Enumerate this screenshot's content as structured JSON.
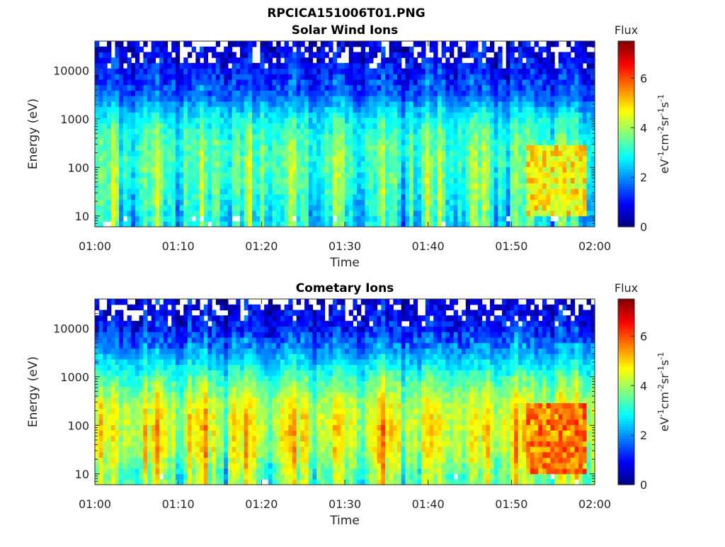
{
  "figure": {
    "title": "RPCICA151006T01.PNG"
  },
  "colormap": "jet",
  "chart_data": [
    {
      "type": "heatmap",
      "title": "Solar Wind Ions",
      "xlabel": "Time",
      "ylabel": "Energy (eV)",
      "x_tick_labels": [
        "01:00",
        "01:10",
        "01:20",
        "01:30",
        "01:40",
        "01:50",
        "02:00"
      ],
      "x_range": [
        "01:00",
        "02:00"
      ],
      "y_scale": "log",
      "y_tick_labels": [
        "10",
        "100",
        "1000",
        "10000"
      ],
      "y_range": [
        6,
        40000
      ],
      "colorbar": {
        "title": "Flux",
        "label": "eV-1cm-2sr-1s-1",
        "tick_labels": [
          "0",
          "2",
          "4",
          "6"
        ],
        "range": [
          0,
          7.5
        ]
      },
      "flux_profile": {
        "energy_eV": [
          10,
          30,
          100,
          300,
          1000,
          3000,
          10000,
          30000
        ],
        "typical_flux": [
          3.0,
          3.3,
          3.5,
          3.4,
          2.9,
          1.7,
          1.1,
          0.7
        ]
      },
      "intense_interval": {
        "time": [
          "01:52",
          "01:59"
        ],
        "energy_eV": [
          10,
          300
        ],
        "peak_flux": 5.3
      }
    },
    {
      "type": "heatmap",
      "title": "Cometary Ions",
      "xlabel": "Time",
      "ylabel": "Energy (eV)",
      "x_tick_labels": [
        "01:00",
        "01:10",
        "01:20",
        "01:30",
        "01:40",
        "01:50",
        "02:00"
      ],
      "x_range": [
        "01:00",
        "02:00"
      ],
      "y_scale": "log",
      "y_tick_labels": [
        "10",
        "100",
        "1000",
        "10000"
      ],
      "y_range": [
        6,
        40000
      ],
      "colorbar": {
        "title": "Flux",
        "label": "eV-1cm-2sr-1s-1",
        "tick_labels": [
          "0",
          "2",
          "4",
          "6"
        ],
        "range": [
          0,
          7.5
        ]
      },
      "flux_profile": {
        "energy_eV": [
          10,
          30,
          100,
          300,
          1000,
          3000,
          10000,
          30000
        ],
        "typical_flux": [
          3.8,
          4.4,
          4.6,
          4.3,
          3.3,
          2.2,
          1.1,
          0.7
        ]
      },
      "intense_interval": {
        "time": [
          "01:52",
          "01:59"
        ],
        "energy_eV": [
          10,
          300
        ],
        "peak_flux": 6.2
      }
    }
  ]
}
